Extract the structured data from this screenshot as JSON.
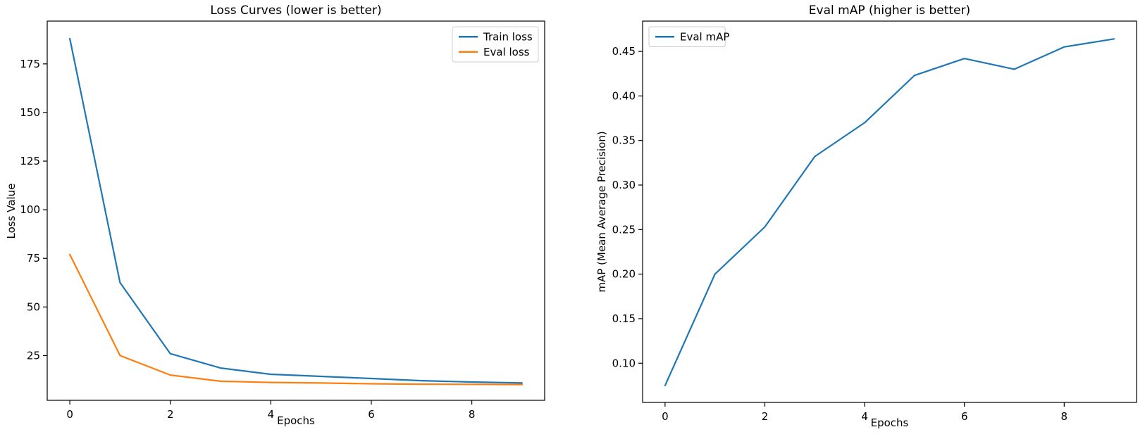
{
  "page": {
    "background": "#ffffff"
  },
  "chart_data": [
    {
      "id": "loss-curves",
      "type": "line",
      "title": "Loss Curves (lower is better)",
      "xlabel": "Epochs",
      "ylabel": "Loss Value",
      "x": [
        0,
        1,
        2,
        3,
        4,
        5,
        6,
        7,
        8,
        9
      ],
      "xlim": [
        -0.45,
        9.45
      ],
      "ylim": [
        2,
        197
      ],
      "grid": false,
      "legend_position": "top-right",
      "xticks": [
        {
          "value": 0,
          "label": "0"
        },
        {
          "value": 2,
          "label": "2"
        },
        {
          "value": 4,
          "label": "4"
        },
        {
          "value": 6,
          "label": "6"
        },
        {
          "value": 8,
          "label": "8"
        }
      ],
      "yticks": [
        {
          "value": 25,
          "label": "25"
        },
        {
          "value": 50,
          "label": "50"
        },
        {
          "value": 75,
          "label": "75"
        },
        {
          "value": 100,
          "label": "100"
        },
        {
          "value": 125,
          "label": "125"
        },
        {
          "value": 150,
          "label": "150"
        },
        {
          "value": 175,
          "label": "175"
        }
      ],
      "series": [
        {
          "name": "Train loss",
          "color": "#1f77b4",
          "values": [
            188,
            62.5,
            26,
            18.6,
            15.4,
            14.3,
            13.2,
            12.1,
            11.4,
            10.9
          ]
        },
        {
          "name": "Eval loss",
          "color": "#ff7f0e",
          "values": [
            77,
            25,
            15,
            11.8,
            11.2,
            10.9,
            10.5,
            10.3,
            10.2,
            10.1
          ]
        }
      ]
    },
    {
      "id": "eval-map",
      "type": "line",
      "title": "Eval mAP (higher is better)",
      "xlabel": "Epochs",
      "ylabel": "mAP (Mean Average Precision)",
      "x": [
        0,
        1,
        2,
        3,
        4,
        5,
        6,
        7,
        8,
        9
      ],
      "xlim": [
        -0.45,
        9.45
      ],
      "ylim": [
        0.056,
        0.484
      ],
      "grid": false,
      "legend_position": "top-left",
      "xticks": [
        {
          "value": 0,
          "label": "0"
        },
        {
          "value": 2,
          "label": "2"
        },
        {
          "value": 4,
          "label": "4"
        },
        {
          "value": 6,
          "label": "6"
        },
        {
          "value": 8,
          "label": "8"
        }
      ],
      "yticks": [
        {
          "value": 0.1,
          "label": "0.10"
        },
        {
          "value": 0.15,
          "label": "0.15"
        },
        {
          "value": 0.2,
          "label": "0.20"
        },
        {
          "value": 0.25,
          "label": "0.25"
        },
        {
          "value": 0.3,
          "label": "0.30"
        },
        {
          "value": 0.35,
          "label": "0.35"
        },
        {
          "value": 0.4,
          "label": "0.40"
        },
        {
          "value": 0.45,
          "label": "0.45"
        }
      ],
      "series": [
        {
          "name": "Eval mAP",
          "color": "#1f77b4",
          "values": [
            0.075,
            0.2,
            0.253,
            0.332,
            0.37,
            0.423,
            0.442,
            0.43,
            0.455,
            0.464
          ]
        }
      ]
    }
  ]
}
